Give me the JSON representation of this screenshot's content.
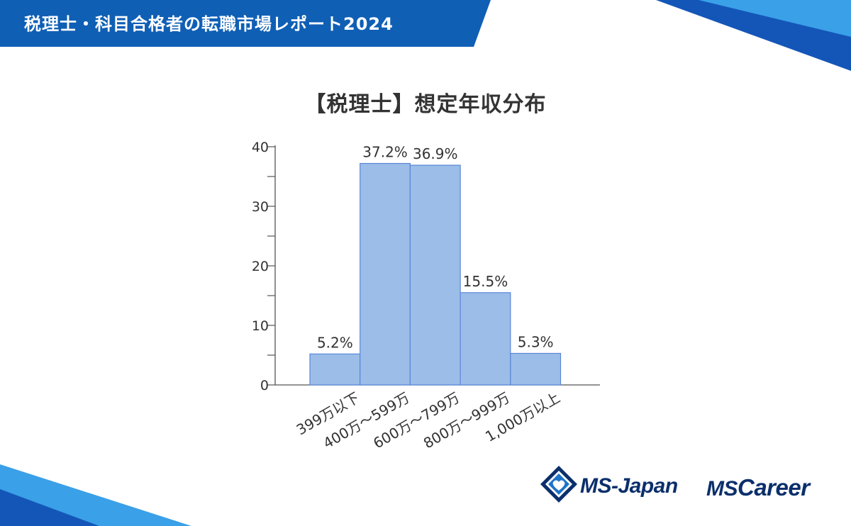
{
  "header": {
    "title": "税理士・科目合格者の転職市場レポート2024"
  },
  "colors": {
    "header_band": "#0f5fb5",
    "bar_fill": "#9bbde8",
    "bar_stroke": "#5b86d8",
    "axis": "#555555",
    "text": "#333333",
    "brand": "#0b2f6b",
    "accent_light": "#3aa0e8",
    "accent_dark": "#1456b8"
  },
  "chart_data": {
    "type": "bar",
    "title": "【税理士】想定年収分布",
    "categories": [
      "399万以下",
      "400万～599万",
      "600万～799万",
      "800万～999万",
      "1,000万以上"
    ],
    "values": [
      5.2,
      37.2,
      36.9,
      15.5,
      5.3
    ],
    "data_labels": [
      "5.2%",
      "37.2%",
      "36.9%",
      "15.5%",
      "5.3%"
    ],
    "ylim": [
      0,
      40
    ],
    "yticks": [
      0,
      10,
      20,
      30,
      40
    ],
    "xlabel": "",
    "ylabel": "",
    "grid": false,
    "legend": "none"
  },
  "footer": {
    "brand_1": "MS-Japan",
    "brand_2_prefix": "MS",
    "brand_2_suffix": "Career",
    "brand_1_icon": "diamond-heart-logo-icon"
  }
}
